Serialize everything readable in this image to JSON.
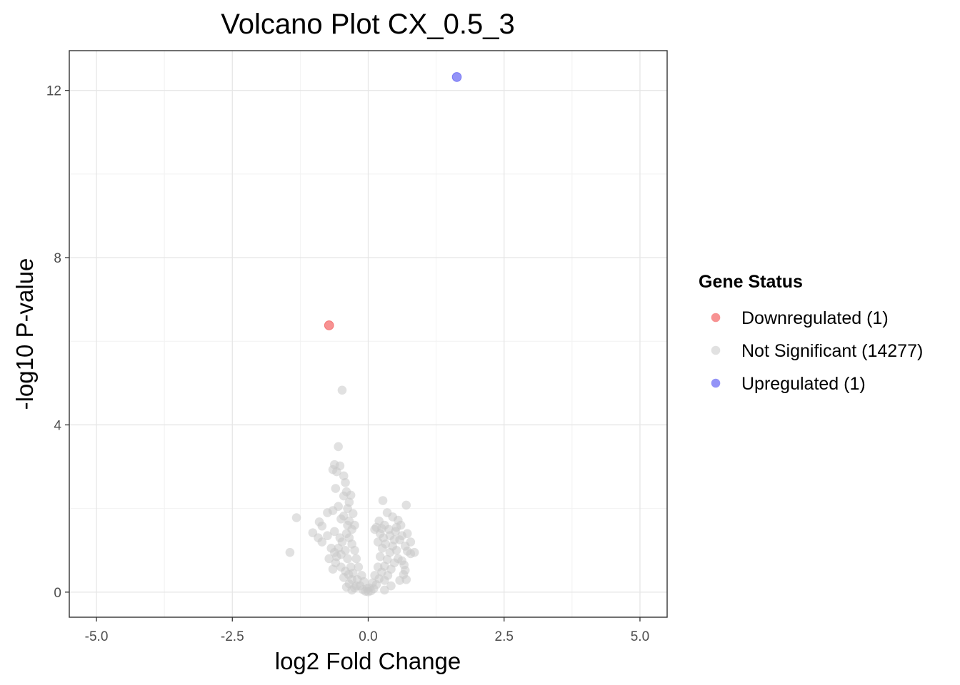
{
  "chart_data": {
    "type": "scatter",
    "title": "Volcano Plot CX_0.5_3",
    "xlabel": "log2 Fold Change",
    "ylabel": "-log10 P-value",
    "xlim": [
      -5.5,
      5.5
    ],
    "ylim": [
      -0.6,
      12.95
    ],
    "x_ticks": [
      -5.0,
      -2.5,
      0.0,
      2.5,
      5.0
    ],
    "x_tick_labels": [
      "-5.0",
      "-2.5",
      "0.0",
      "2.5",
      "5.0"
    ],
    "y_ticks": [
      0,
      4,
      8,
      12
    ],
    "y_tick_labels": [
      "0",
      "4",
      "8",
      "12"
    ],
    "grid": true,
    "legend": {
      "title": "Gene Status",
      "position": "right"
    },
    "series": [
      {
        "name": "Downregulated (1)",
        "color": "#f46d6d",
        "points": [
          [
            -0.72,
            6.38
          ]
        ]
      },
      {
        "name": "Not Significant (14277)",
        "color": "#c8c8c8",
        "points": [
          [
            -0.48,
            4.83
          ],
          [
            -0.55,
            3.48
          ],
          [
            -0.62,
            3.05
          ],
          [
            -0.52,
            3.02
          ],
          [
            -0.65,
            2.93
          ],
          [
            -0.58,
            2.88
          ],
          [
            -0.45,
            2.78
          ],
          [
            -0.42,
            2.62
          ],
          [
            -0.6,
            2.48
          ],
          [
            -0.4,
            2.4
          ],
          [
            -0.45,
            2.3
          ],
          [
            -0.32,
            2.32
          ],
          [
            -0.35,
            2.15
          ],
          [
            0.27,
            2.19
          ],
          [
            0.7,
            2.08
          ],
          [
            -0.55,
            2.05
          ],
          [
            -0.38,
            2.0
          ],
          [
            -0.65,
            1.95
          ],
          [
            -0.75,
            1.9
          ],
          [
            -0.28,
            1.88
          ],
          [
            -0.45,
            1.82
          ],
          [
            0.35,
            1.9
          ],
          [
            0.45,
            1.8
          ],
          [
            0.55,
            1.72
          ],
          [
            0.6,
            1.6
          ],
          [
            -1.32,
            1.78
          ],
          [
            -0.9,
            1.68
          ],
          [
            -0.85,
            1.58
          ],
          [
            -0.5,
            1.75
          ],
          [
            -0.35,
            1.7
          ],
          [
            -1.02,
            1.42
          ],
          [
            -0.92,
            1.3
          ],
          [
            -0.85,
            1.2
          ],
          [
            -0.75,
            1.35
          ],
          [
            -0.62,
            1.45
          ],
          [
            0.2,
            1.7
          ],
          [
            0.3,
            1.6
          ],
          [
            0.38,
            1.5
          ],
          [
            0.5,
            1.45
          ],
          [
            0.62,
            1.35
          ],
          [
            0.72,
            1.4
          ],
          [
            0.78,
            1.2
          ],
          [
            0.68,
            1.1
          ],
          [
            0.58,
            1.25
          ],
          [
            0.52,
            1.55
          ],
          [
            -1.44,
            0.95
          ],
          [
            -0.72,
            0.8
          ],
          [
            -0.68,
            1.05
          ],
          [
            -0.62,
            0.95
          ],
          [
            0.85,
            0.95
          ],
          [
            0.78,
            0.92
          ],
          [
            0.72,
            0.98
          ],
          [
            0.68,
            0.52
          ],
          [
            0.65,
            0.42
          ],
          [
            0.58,
            0.28
          ],
          [
            -0.58,
            0.85
          ],
          [
            -0.5,
            0.6
          ],
          [
            -0.45,
            0.35
          ],
          [
            -0.35,
            0.2
          ],
          [
            -0.25,
            0.1
          ],
          [
            -0.48,
            1.2
          ],
          [
            -0.42,
            1.0
          ],
          [
            -0.38,
            0.8
          ],
          [
            -0.32,
            0.6
          ],
          [
            -0.28,
            0.45
          ],
          [
            -0.2,
            0.3
          ],
          [
            -0.15,
            0.15
          ],
          [
            -0.1,
            0.06
          ],
          [
            -0.05,
            0.02
          ],
          [
            0.0,
            0.01
          ],
          [
            0.05,
            0.03
          ],
          [
            0.1,
            0.08
          ],
          [
            0.15,
            0.18
          ],
          [
            0.2,
            0.32
          ],
          [
            0.25,
            0.48
          ],
          [
            0.3,
            0.62
          ],
          [
            0.35,
            0.78
          ],
          [
            0.4,
            0.95
          ],
          [
            0.45,
            1.1
          ],
          [
            0.48,
            1.25
          ],
          [
            0.22,
            1.4
          ],
          [
            0.28,
            1.3
          ],
          [
            0.32,
            1.15
          ],
          [
            0.4,
            1.35
          ],
          [
            0.18,
            1.2
          ],
          [
            -0.4,
            1.4
          ],
          [
            -0.35,
            1.3
          ],
          [
            -0.3,
            1.15
          ],
          [
            -0.25,
            1.0
          ],
          [
            -0.22,
            0.8
          ],
          [
            -0.18,
            0.6
          ],
          [
            -0.12,
            0.4
          ],
          [
            -0.08,
            0.25
          ],
          [
            0.08,
            0.22
          ],
          [
            0.12,
            0.4
          ],
          [
            0.18,
            0.6
          ],
          [
            0.22,
            0.85
          ],
          [
            0.26,
            1.05
          ],
          [
            -0.3,
            1.5
          ],
          [
            -0.38,
            1.6
          ],
          [
            -0.52,
            1.3
          ],
          [
            -0.55,
            1.05
          ],
          [
            -0.5,
            0.9
          ],
          [
            0.52,
            1.0
          ],
          [
            0.55,
            0.8
          ],
          [
            0.48,
            0.7
          ],
          [
            0.42,
            0.55
          ],
          [
            0.36,
            0.4
          ],
          [
            0.3,
            0.28
          ],
          [
            -0.42,
            0.5
          ],
          [
            -0.36,
            0.42
          ],
          [
            -0.3,
            0.3
          ],
          [
            -0.22,
            0.15
          ],
          [
            0.02,
            0.1
          ],
          [
            -0.02,
            0.08
          ],
          [
            0.62,
            0.75
          ],
          [
            0.66,
            0.65
          ],
          [
            -0.6,
            0.7
          ],
          [
            -0.65,
            0.55
          ],
          [
            0.7,
            0.3
          ],
          [
            -0.3,
            0.05
          ],
          [
            0.3,
            0.05
          ],
          [
            -0.4,
            0.12
          ],
          [
            0.42,
            0.15
          ],
          [
            0.12,
            1.5
          ],
          [
            -0.25,
            1.6
          ],
          [
            0.15,
            1.55
          ],
          [
            0.25,
            1.52
          ]
        ]
      },
      {
        "name": "Upregulated (1)",
        "color": "#6f6ff4",
        "points": [
          [
            1.63,
            12.32
          ]
        ]
      }
    ]
  }
}
